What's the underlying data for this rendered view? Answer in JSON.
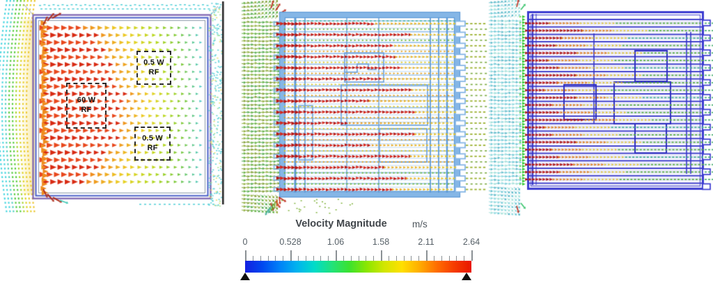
{
  "chart_data": {
    "type": "vector-field",
    "title": "Velocity Magnitude",
    "units": "m/s",
    "colorbar": {
      "min": 0,
      "max": 2.64,
      "tick_values": [
        0,
        0.528,
        1.06,
        1.58,
        2.11,
        2.64
      ],
      "tick_labels": [
        "0",
        "0.528",
        "1.06",
        "1.58",
        "2.11",
        "2.64"
      ],
      "minor_per_interval": 5,
      "end_marker": "black-triangle",
      "gradient_stops": [
        "#1420e0",
        "#0048f0",
        "#0082f8",
        "#00b4ee",
        "#00dcc8",
        "#22e27a",
        "#3ce22e",
        "#8ce600",
        "#d2e600",
        "#ffe000",
        "#ffae00",
        "#ff6e00",
        "#f63c00",
        "#e81600"
      ]
    },
    "panels": [
      {
        "id": "panel-1",
        "description": "Velocity vectors around RF module enclosure; hot red jets enter from left inlet, cyan recirculation at left and right walls",
        "annotations": [
          {
            "label": "0.5 W\nRF",
            "box": [
              196,
              73,
              46,
              45
            ]
          },
          {
            "label": "60 W\nRF",
            "box": [
              95,
              119,
              54,
              62
            ]
          },
          {
            "label": "0.5 W\nRF",
            "box": [
              193,
              182,
              48,
              45
            ]
          }
        ],
        "render": {
          "frame_colors": [
            "#7a5fae",
            "#4a5fc8",
            "#8a98a8"
          ],
          "inlet_color": "#ef8c1e",
          "hot_color": "#d82a12",
          "fade_stops": [
            "#f08a1c",
            "#ecd024",
            "#b8d81e",
            "#7ac838",
            "#48c8cc"
          ],
          "arc_colors": [
            "#45d6e0",
            "#45d6e0",
            "#52d0c0",
            "#55cc3a",
            "#55cc3a",
            "#a8d626",
            "#ddd21e",
            "#e8ce2a",
            "#ecc62e"
          ],
          "row_count": 22,
          "wall_color": "#2a2a2a",
          "speckle_colors": [
            "#5ed2da",
            "#a6e69a",
            "#e8e070"
          ]
        }
      },
      {
        "id": "panel-2",
        "description": "Velocity vectors through light-blue chassis with horizontal card channels; red jets penetrate from left inlet, warm flow exits right nozzles",
        "annotations": [],
        "render": {
          "frame_color": "#85b6e6",
          "manifold_color": "#5d9ad8",
          "stripe_color": "#bdd9f2",
          "stripe_strong": "#9cc4ec",
          "outline_color": "#6aa0dc",
          "component_rects": [
            [
              150,
              76,
              56,
              42
            ],
            [
              145,
              122,
              124,
              58
            ],
            [
              200,
              185,
              68,
              48
            ],
            [
              84,
              152,
              20,
              78
            ]
          ],
          "red_rows": 16,
          "red_colors": [
            "#b81410",
            "#d6251a"
          ],
          "warm_colors": [
            "#e89018",
            "#e6c626"
          ],
          "mid_colors": [
            "#d8c82a",
            "#e0a020",
            "#6ab83c"
          ],
          "field_colors": [
            "#7d9c2e",
            "#5fae3c",
            "#8fae3c",
            "#4fa848"
          ],
          "exit_color": "#9ab02c"
        }
      },
      {
        "id": "panel-3",
        "description": "Velocity vectors through royal-blue chassis; green inlet sheet at left, short red jets decay to yellow-green flow along channels",
        "annotations": [],
        "render": {
          "frame_color": "#3b3bd0",
          "frame_light": "#5d5dd8",
          "band_tint": "rgba(110,110,215,0.17)",
          "channel_count": 23,
          "inlet_green": "#2ec62e",
          "red": "#a81210",
          "orange": "#e08018",
          "yellow": "#ddc428",
          "green": "#58b040",
          "exit_green": "#52b478",
          "field_colors": [
            "#6cc8d6",
            "#8cd8de",
            "#58b8c8",
            "#a0e0d8"
          ],
          "component_rects": [
            [
              212,
              73,
              46,
              44
            ],
            [
              110,
              122,
              46,
              50
            ],
            [
              182,
              118,
              81,
              60
            ],
            [
              212,
              178,
              45,
              42
            ]
          ]
        }
      }
    ]
  }
}
